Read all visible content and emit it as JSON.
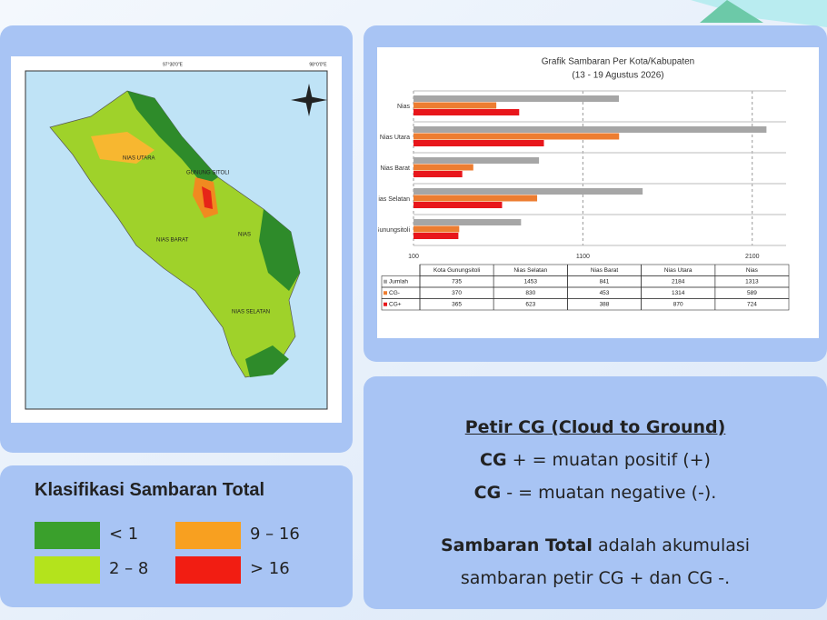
{
  "chart_data": {
    "type": "bar",
    "orientation": "horizontal",
    "title": "Grafik Sambaran Per Kota/Kabupaten",
    "subtitle": "(13 - 19 Agustus 2026)",
    "categories": [
      "Kota Gunungsitoli",
      "Nias Selatan",
      "Nias Barat",
      "Nias Utara",
      "Nias"
    ],
    "series": [
      {
        "name": "Jumlah",
        "color": "#a6a6a6",
        "values": [
          735,
          1453,
          841,
          2184,
          1313
        ]
      },
      {
        "name": "CG-",
        "color": "#ed7d31",
        "values": [
          370,
          830,
          453,
          1314,
          589
        ]
      },
      {
        "name": "CG+",
        "color": "#e8161b",
        "values": [
          365,
          623,
          388,
          870,
          724
        ]
      }
    ],
    "xlim": [
      100,
      2300
    ],
    "xticks": [
      100,
      1100,
      2100
    ],
    "grid": true,
    "data_table": true
  },
  "map": {
    "labels": [
      "NIAS UTARA",
      "GUNUNG SITOLI",
      "NIAS BARAT",
      "NIAS",
      "NIAS SELATAN"
    ],
    "coords": [
      "97°30'0\"E",
      "98°0'0\"E"
    ]
  },
  "legend": {
    "title": "Klasifikasi Sambaran Total",
    "items": [
      {
        "label": "< 1",
        "color": "#3aa02c"
      },
      {
        "label": "2 – 8",
        "color": "#b4e31c"
      },
      {
        "label": "9 – 16",
        "color": "#f8a020"
      },
      {
        "label": "> 16",
        "color": "#f21d12"
      }
    ]
  },
  "info": {
    "heading": "Petir CG (Cloud to Ground)",
    "line1": {
      "bold": "CG",
      "rest": "+ = muatan positif (+)"
    },
    "line2": {
      "bold": "CG",
      "rest": "- = muatan negative (-)."
    },
    "line3": {
      "bold": "Sambaran Total",
      "rest": "adalah akumulasi"
    },
    "line4": "sambaran petir CG + dan CG -."
  }
}
